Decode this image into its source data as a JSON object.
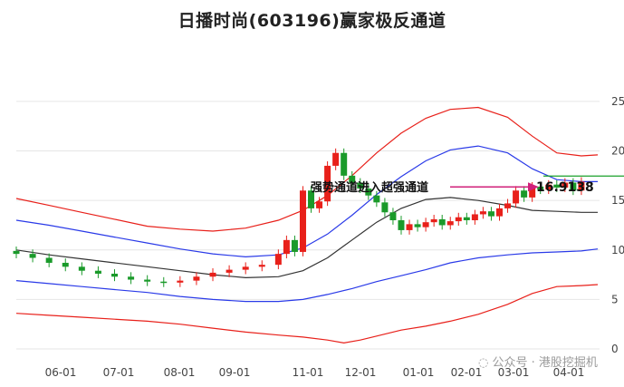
{
  "chart_data": {
    "type": "candlestick",
    "title": "日播时尚(603196)赢家极反通道",
    "ylim": [
      0,
      26
    ],
    "y_ticks": [
      "0",
      "5",
      "10",
      "15",
      "20",
      "25"
    ],
    "x_ticks": [
      "06-01",
      "07-01",
      "08-01",
      "09-01",
      "11-01",
      "12-01",
      "01-01",
      "02-01",
      "03-01",
      "04-01"
    ],
    "annotation": "强势通道进入超强通道",
    "value_label": "16.9138",
    "value": 16.9138,
    "watermark": "公众号 · 港股挖掘机",
    "colors": {
      "up": "#e8201a",
      "down": "#1a9a2a",
      "outer_band": "#e8201a",
      "inner_band": "#2a3ae8",
      "mid_line": "#333333",
      "arrow": "#d0207a",
      "ref_line": "#1aa02a"
    },
    "series": [
      {
        "role": "outer_upper",
        "x": [
          0,
          20,
          40,
          60,
          80,
          100,
          120,
          140,
          160,
          175,
          190,
          205,
          220,
          235,
          250,
          265,
          282,
          300,
          315,
          330,
          345,
          355
        ],
        "y": [
          15.2,
          14.5,
          13.8,
          13.1,
          12.4,
          12.1,
          11.9,
          12.2,
          13.0,
          14.0,
          15.5,
          17.5,
          19.8,
          21.8,
          23.3,
          24.2,
          24.4,
          23.4,
          21.5,
          19.8,
          19.5,
          19.6
        ]
      },
      {
        "role": "outer_lower",
        "x": [
          0,
          20,
          40,
          60,
          80,
          100,
          120,
          140,
          160,
          175,
          190,
          200,
          210,
          220,
          235,
          250,
          265,
          282,
          300,
          315,
          330,
          345,
          355
        ],
        "y": [
          3.6,
          3.4,
          3.2,
          3.0,
          2.8,
          2.5,
          2.1,
          1.7,
          1.4,
          1.2,
          0.9,
          0.6,
          0.9,
          1.3,
          1.9,
          2.3,
          2.8,
          3.5,
          4.5,
          5.6,
          6.3,
          6.4,
          6.5
        ]
      },
      {
        "role": "inner_upper",
        "x": [
          0,
          20,
          40,
          60,
          80,
          100,
          120,
          140,
          160,
          175,
          190,
          205,
          220,
          235,
          250,
          265,
          282,
          300,
          315,
          330,
          345,
          355
        ],
        "y": [
          13.0,
          12.5,
          11.9,
          11.3,
          10.7,
          10.1,
          9.6,
          9.3,
          9.5,
          10.2,
          11.6,
          13.5,
          15.6,
          17.4,
          19.0,
          20.1,
          20.5,
          19.8,
          18.2,
          17.1,
          16.9,
          16.9
        ]
      },
      {
        "role": "inner_lower",
        "x": [
          0,
          20,
          40,
          60,
          80,
          100,
          120,
          140,
          160,
          175,
          190,
          205,
          220,
          235,
          250,
          265,
          282,
          300,
          315,
          330,
          345,
          355
        ],
        "y": [
          6.9,
          6.6,
          6.3,
          6.0,
          5.7,
          5.3,
          5.0,
          4.8,
          4.8,
          5.0,
          5.5,
          6.1,
          6.8,
          7.4,
          8.0,
          8.7,
          9.2,
          9.5,
          9.7,
          9.8,
          9.9,
          10.1
        ]
      },
      {
        "role": "mid",
        "x": [
          0,
          20,
          40,
          60,
          80,
          100,
          120,
          140,
          160,
          175,
          190,
          205,
          220,
          235,
          250,
          265,
          282,
          300,
          315,
          330,
          345,
          355
        ],
        "y": [
          10.0,
          9.5,
          9.1,
          8.7,
          8.3,
          7.9,
          7.5,
          7.2,
          7.3,
          7.9,
          9.2,
          11.0,
          12.8,
          14.2,
          15.1,
          15.3,
          15.0,
          14.5,
          14.0,
          13.9,
          13.8,
          13.8
        ]
      },
      {
        "role": "price",
        "x": [
          0,
          10,
          20,
          30,
          40,
          50,
          60,
          70,
          80,
          90,
          100,
          110,
          120,
          130,
          140,
          150,
          160,
          165,
          170,
          175,
          180,
          185,
          190,
          195,
          200,
          205,
          210,
          215,
          220,
          225,
          230,
          235,
          240,
          245,
          250,
          255,
          260,
          265,
          270,
          275,
          280,
          285,
          290,
          295,
          300,
          305,
          310,
          315,
          320,
          325,
          330,
          335,
          340,
          345
        ],
        "y": [
          9.6,
          9.2,
          8.7,
          8.3,
          7.9,
          7.6,
          7.3,
          7.0,
          6.8,
          6.7,
          6.9,
          7.3,
          7.7,
          8.0,
          8.3,
          8.5,
          9.6,
          11.0,
          9.8,
          16.0,
          14.2,
          14.9,
          18.5,
          19.8,
          17.5,
          16.8,
          16.2,
          15.5,
          14.8,
          13.8,
          13.0,
          12.0,
          12.6,
          12.3,
          12.8,
          13.1,
          12.5,
          12.9,
          13.3,
          13.0,
          13.6,
          13.9,
          13.4,
          14.2,
          14.7,
          16.0,
          15.3,
          16.4,
          16.1,
          16.6,
          16.3,
          16.8,
          16.0,
          16.9
        ]
      }
    ]
  }
}
